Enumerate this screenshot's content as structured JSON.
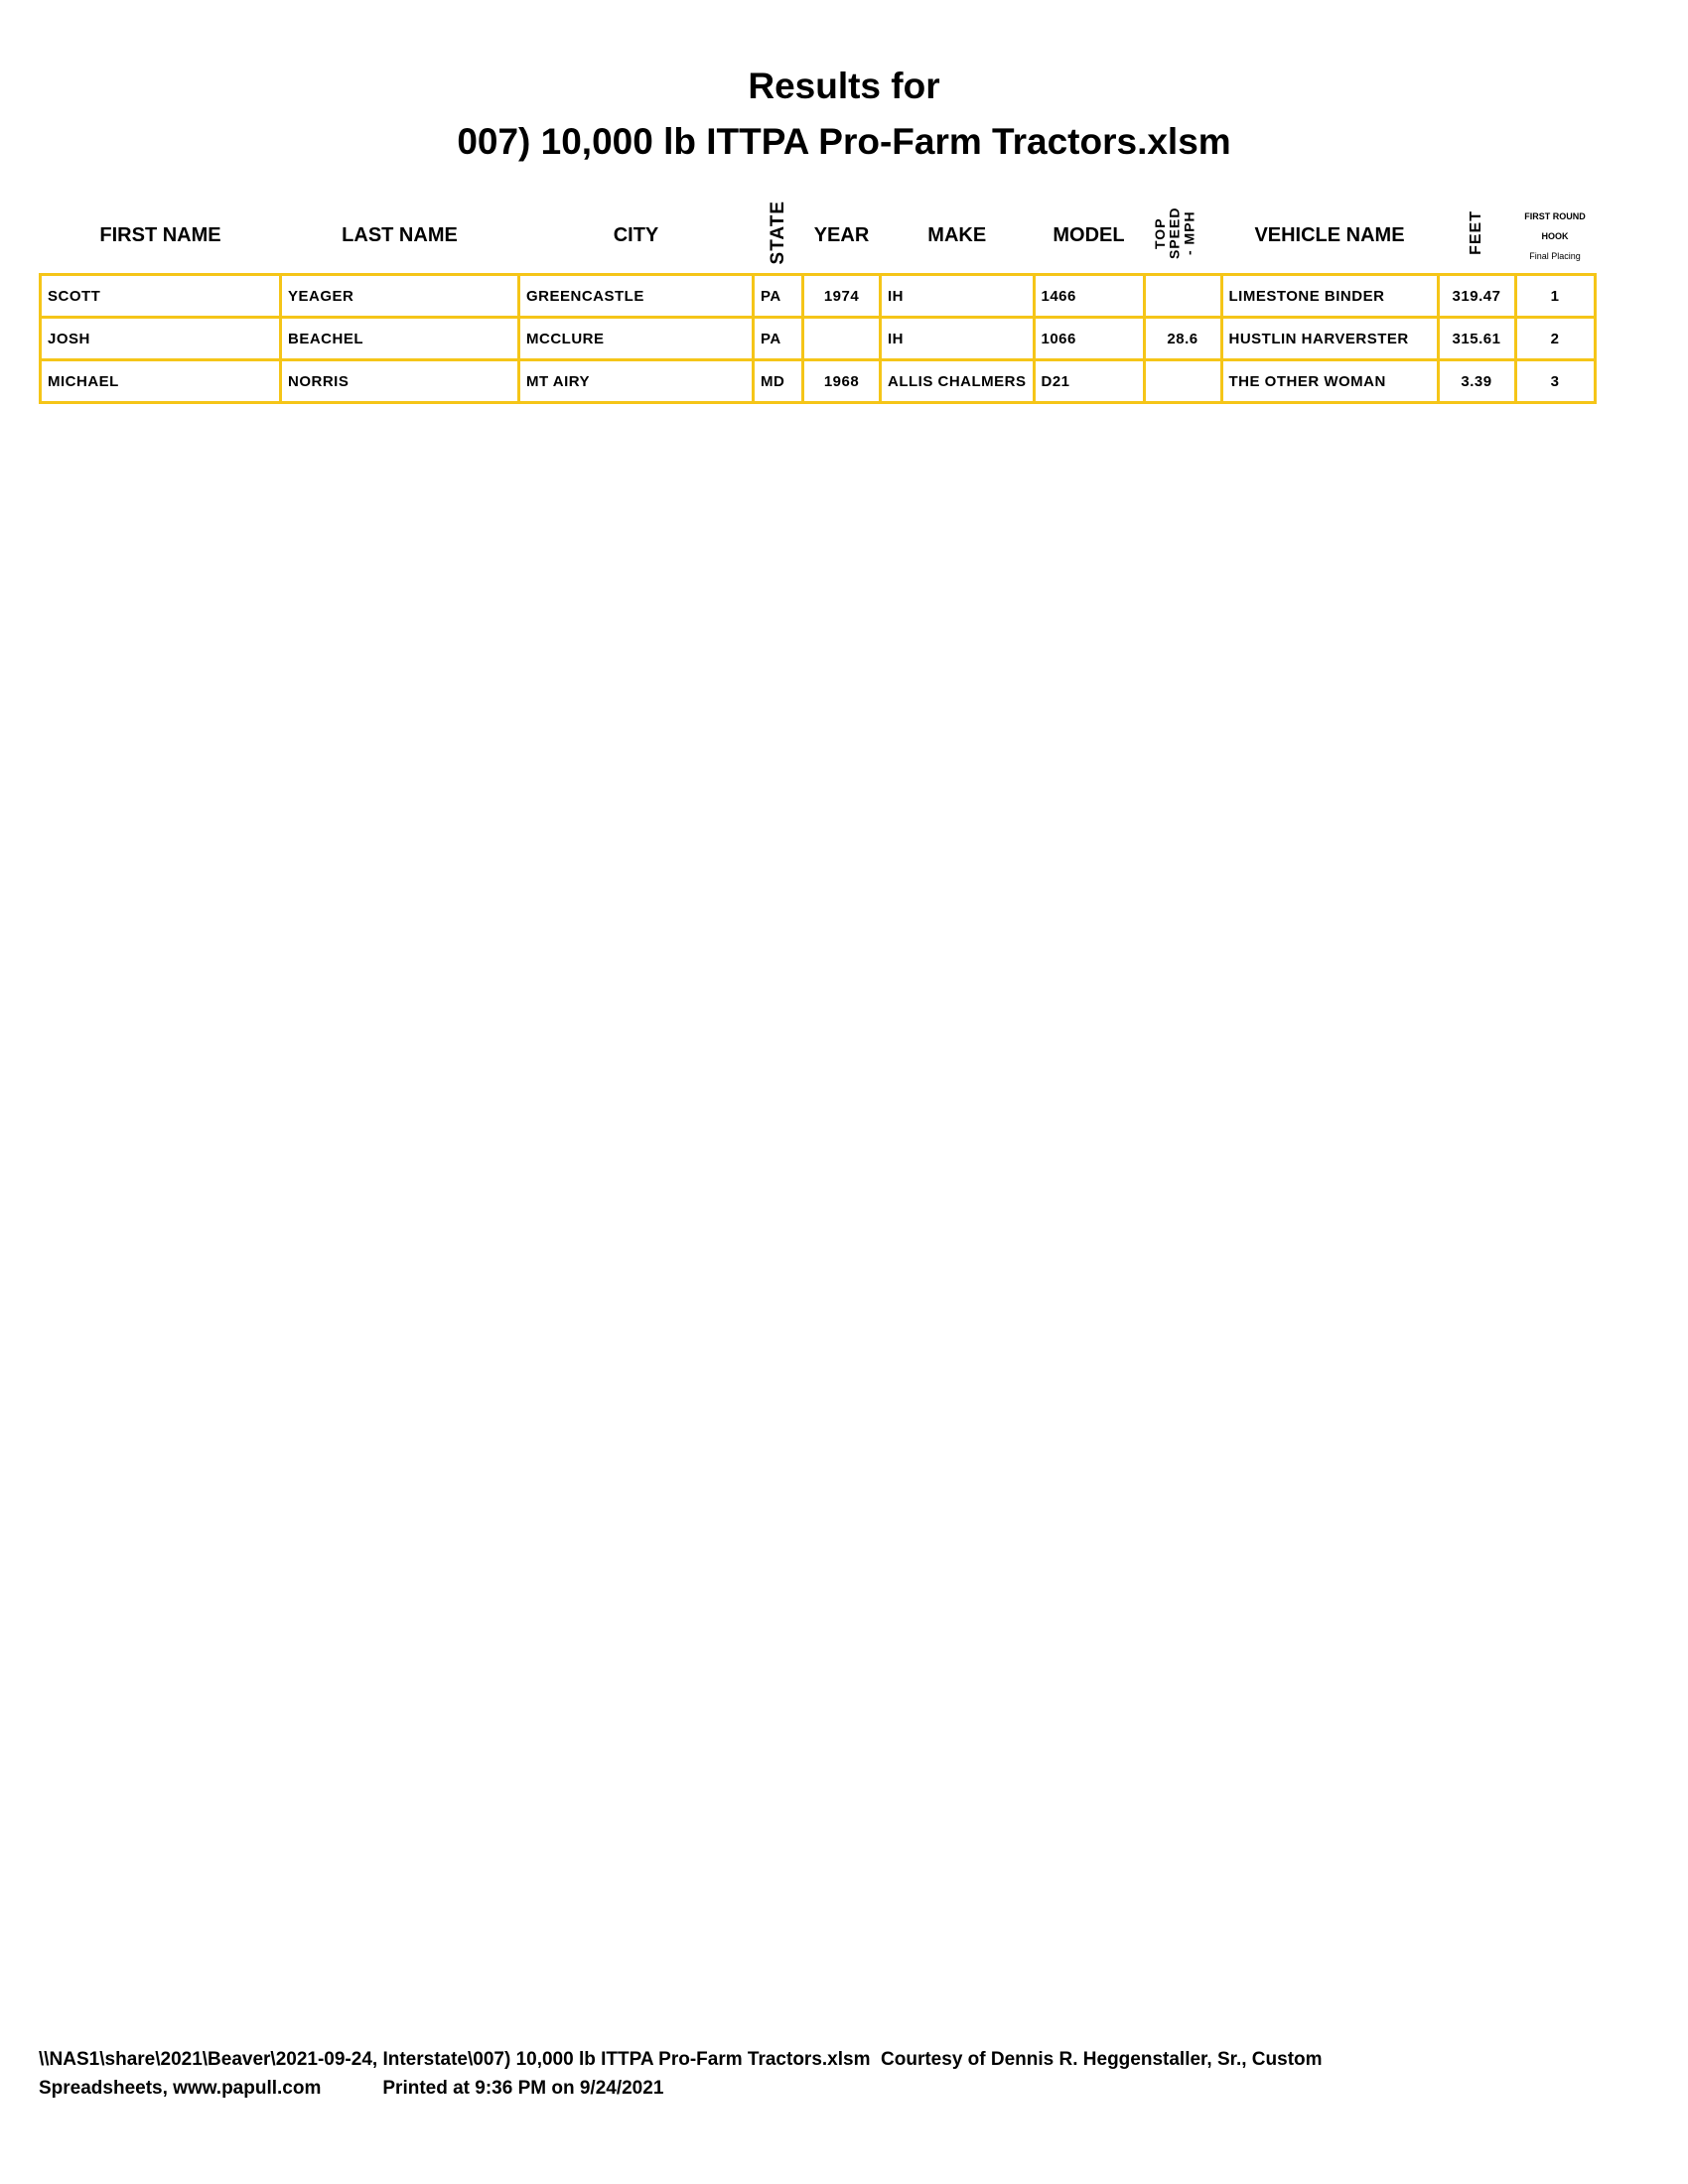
{
  "title_line1": "Results for",
  "title_line2": "007) 10,000 lb ITTPA Pro-Farm Tractors.xlsm",
  "columns": {
    "first_name": "FIRST NAME",
    "last_name": "LAST NAME",
    "city": "CITY",
    "state": "STATE",
    "year": "YEAR",
    "make": "MAKE",
    "model": "MODEL",
    "top_speed": "TOP SPEED - MPH",
    "vehicle_name": "VEHICLE NAME",
    "feet": "FEET",
    "hook_line1": "FIRST ROUND",
    "hook_line2": "HOOK",
    "hook_line3": "Final Placing"
  },
  "rows": [
    {
      "first_name": "SCOTT",
      "last_name": "YEAGER",
      "city": "GREENCASTLE",
      "state": "PA",
      "year": "1974",
      "make": "IH",
      "model": "1466",
      "top_speed": "",
      "vehicle_name": "LIMESTONE BINDER",
      "feet": "319.47",
      "placing": "1"
    },
    {
      "first_name": "JOSH",
      "last_name": "BEACHEL",
      "city": "MCCLURE",
      "state": "PA",
      "year": "",
      "make": "IH",
      "model": "1066",
      "top_speed": "28.6",
      "vehicle_name": "HUSTLIN HARVERSTER",
      "feet": "315.61",
      "placing": "2"
    },
    {
      "first_name": "MICHAEL",
      "last_name": "NORRIS",
      "city": "MT AIRY",
      "state": "MD",
      "year": "1968",
      "make": "ALLIS CHALMERS",
      "model": "D21",
      "top_speed": "",
      "vehicle_name": "THE OTHER WOMAN",
      "feet": "3.39",
      "placing": "3"
    }
  ],
  "footer": {
    "line1": "\\\\NAS1\\share\\2021\\Beaver\\2021-09-24, Interstate\\007) 10,000 lb ITTPA Pro-Farm Tractors.xlsm  Courtesy of Dennis R. Heggenstaller, Sr., Custom",
    "line2_left": "Spreadsheets, www.papull.com",
    "line2_right": "Printed at 9:36 PM on 9/24/2021"
  },
  "colors": {
    "border": "#f5c518"
  }
}
